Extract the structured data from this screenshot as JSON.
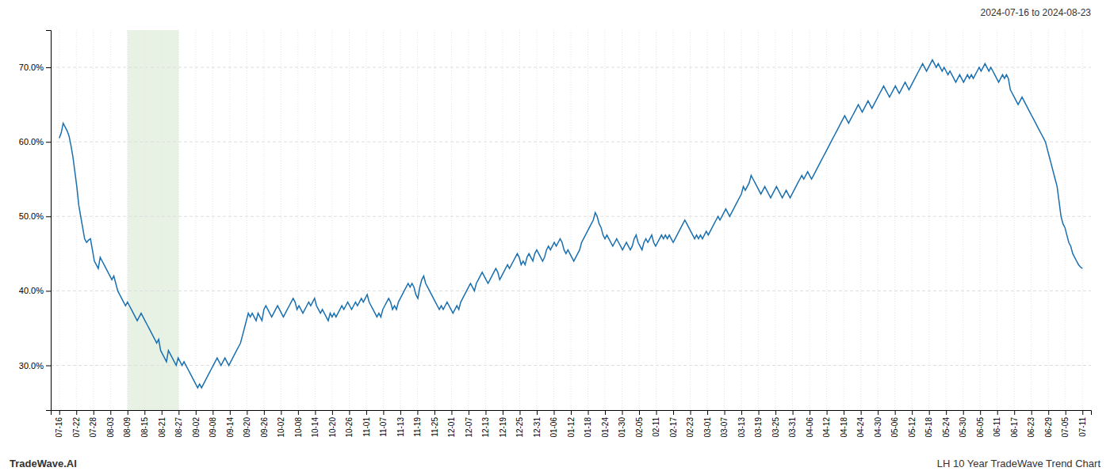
{
  "chart_data": {
    "type": "line",
    "title": "LH 10 Year TradeWave Trend Chart",
    "subtitle": "2024-07-16 to 2024-08-23",
    "annotations": [
      {
        "text": "TradeWave.AI"
      }
    ],
    "color": "#1a6faf",
    "grid": true,
    "ylim": [
      24,
      75
    ],
    "yticks": [
      {
        "value": 30.0,
        "label": "30.0%"
      },
      {
        "value": 40.0,
        "label": "40.0%"
      },
      {
        "value": 50.0,
        "label": "50.0%"
      },
      {
        "value": 60.0,
        "label": "60.0%"
      },
      {
        "value": 70.0,
        "label": "70.0%"
      }
    ],
    "xlim": [
      -4.375,
      529.375
    ],
    "xticks": [
      {
        "value": 0,
        "label": "07-16"
      },
      {
        "value": 8.75,
        "label": "07-22"
      },
      {
        "value": 17.5,
        "label": "07-28"
      },
      {
        "value": 26.25,
        "label": "08-03"
      },
      {
        "value": 35,
        "label": "08-09"
      },
      {
        "value": 43.75,
        "label": "08-15"
      },
      {
        "value": 52.5,
        "label": "08-21"
      },
      {
        "value": 61.25,
        "label": "08-27"
      },
      {
        "value": 70,
        "label": "09-02"
      },
      {
        "value": 78.75,
        "label": "09-08"
      },
      {
        "value": 87.5,
        "label": "09-14"
      },
      {
        "value": 96.25,
        "label": "09-20"
      },
      {
        "value": 105,
        "label": "09-26"
      },
      {
        "value": 113.75,
        "label": "10-02"
      },
      {
        "value": 122.5,
        "label": "10-08"
      },
      {
        "value": 131.25,
        "label": "10-14"
      },
      {
        "value": 140,
        "label": "10-20"
      },
      {
        "value": 148.75,
        "label": "10-26"
      },
      {
        "value": 157.5,
        "label": "11-01"
      },
      {
        "value": 166.25,
        "label": "11-07"
      },
      {
        "value": 175,
        "label": "11-13"
      },
      {
        "value": 183.75,
        "label": "11-19"
      },
      {
        "value": 192.5,
        "label": "11-25"
      },
      {
        "value": 201.25,
        "label": "12-01"
      },
      {
        "value": 210,
        "label": "12-07"
      },
      {
        "value": 218.75,
        "label": "12-13"
      },
      {
        "value": 227.5,
        "label": "12-19"
      },
      {
        "value": 236.25,
        "label": "12-25"
      },
      {
        "value": 245,
        "label": "12-31"
      },
      {
        "value": 253.75,
        "label": "01-06"
      },
      {
        "value": 262.5,
        "label": "01-12"
      },
      {
        "value": 271.25,
        "label": "01-18"
      },
      {
        "value": 280,
        "label": "01-24"
      },
      {
        "value": 288.75,
        "label": "01-30"
      },
      {
        "value": 297.5,
        "label": "02-05"
      },
      {
        "value": 306.25,
        "label": "02-11"
      },
      {
        "value": 315,
        "label": "02-17"
      },
      {
        "value": 323.75,
        "label": "02-23"
      },
      {
        "value": 332.5,
        "label": "03-01"
      },
      {
        "value": 341.25,
        "label": "03-07"
      },
      {
        "value": 350,
        "label": "03-13"
      },
      {
        "value": 358.75,
        "label": "03-19"
      },
      {
        "value": 367.5,
        "label": "03-25"
      },
      {
        "value": 376.25,
        "label": "03-31"
      },
      {
        "value": 385,
        "label": "04-06"
      },
      {
        "value": 393.75,
        "label": "04-12"
      },
      {
        "value": 402.5,
        "label": "04-18"
      },
      {
        "value": 411.25,
        "label": "04-24"
      },
      {
        "value": 420,
        "label": "04-30"
      },
      {
        "value": 428.75,
        "label": "05-06"
      },
      {
        "value": 437.5,
        "label": "05-12"
      },
      {
        "value": 446.25,
        "label": "05-18"
      },
      {
        "value": 455,
        "label": "05-24"
      },
      {
        "value": 463.75,
        "label": "05-30"
      },
      {
        "value": 472.5,
        "label": "06-05"
      },
      {
        "value": 481.25,
        "label": "06-11"
      },
      {
        "value": 490,
        "label": "06-17"
      },
      {
        "value": 498.75,
        "label": "06-23"
      },
      {
        "value": 507.5,
        "label": "06-29"
      },
      {
        "value": 516.25,
        "label": "07-05"
      },
      {
        "value": 525,
        "label": "07-11"
      }
    ],
    "highlight": {
      "start": 35,
      "end": 61.25,
      "color": "#d4e8d0"
    },
    "values": [
      60.5,
      61.2,
      62.5,
      62.0,
      61.5,
      60.8,
      59.5,
      58.0,
      56.0,
      54.0,
      51.5,
      50.0,
      48.5,
      47.0,
      46.5,
      46.8,
      47.0,
      45.5,
      44.0,
      43.5,
      43.0,
      44.5,
      44.0,
      43.5,
      43.0,
      42.5,
      42.0,
      41.5,
      42.0,
      41.0,
      40.0,
      39.5,
      39.0,
      38.5,
      38.0,
      38.5,
      38.0,
      37.5,
      37.0,
      36.5,
      36.0,
      36.5,
      37.0,
      36.5,
      36.0,
      35.5,
      35.0,
      34.5,
      34.0,
      33.5,
      33.0,
      33.5,
      32.0,
      31.5,
      31.0,
      30.5,
      32.0,
      31.5,
      31.0,
      30.5,
      30.0,
      31.0,
      30.5,
      30.0,
      30.5,
      30.0,
      29.5,
      29.0,
      28.5,
      28.0,
      27.5,
      27.0,
      27.5,
      27.0,
      27.5,
      28.0,
      28.5,
      29.0,
      29.5,
      30.0,
      30.5,
      31.0,
      30.5,
      30.0,
      30.5,
      31.0,
      30.5,
      30.0,
      30.5,
      31.0,
      31.5,
      32.0,
      32.5,
      33.0,
      34.0,
      35.0,
      36.0,
      37.0,
      36.5,
      37.0,
      36.5,
      36.0,
      37.0,
      36.5,
      36.0,
      37.5,
      38.0,
      37.5,
      37.0,
      36.5,
      37.0,
      37.5,
      38.0,
      37.5,
      37.0,
      36.5,
      37.0,
      37.5,
      38.0,
      38.5,
      39.0,
      38.5,
      37.5,
      38.0,
      37.5,
      37.0,
      37.5,
      38.0,
      38.5,
      38.0,
      38.5,
      39.0,
      38.0,
      37.5,
      37.0,
      37.5,
      37.0,
      36.5,
      36.0,
      37.0,
      36.5,
      37.0,
      36.5,
      37.0,
      37.5,
      38.0,
      37.5,
      38.0,
      38.5,
      38.0,
      37.5,
      38.0,
      38.5,
      38.0,
      38.5,
      39.0,
      38.5,
      39.0,
      39.5,
      38.5,
      38.0,
      37.5,
      37.0,
      36.5,
      37.0,
      36.5,
      37.5,
      38.0,
      38.5,
      39.0,
      38.5,
      37.5,
      38.0,
      37.5,
      38.5,
      39.0,
      39.5,
      40.0,
      40.5,
      41.0,
      40.5,
      41.0,
      40.5,
      39.5,
      39.0,
      40.5,
      41.5,
      42.0,
      41.0,
      40.5,
      40.0,
      39.5,
      39.0,
      38.5,
      38.0,
      37.5,
      38.0,
      37.5,
      38.0,
      38.5,
      38.0,
      37.5,
      37.0,
      37.5,
      38.0,
      37.5,
      38.5,
      39.0,
      39.5,
      40.0,
      40.5,
      41.0,
      40.5,
      40.0,
      41.0,
      41.5,
      42.0,
      42.5,
      42.0,
      41.5,
      41.0,
      41.5,
      42.0,
      42.5,
      43.0,
      42.5,
      41.5,
      42.0,
      42.5,
      43.0,
      43.5,
      43.0,
      43.5,
      44.0,
      44.5,
      45.0,
      44.5,
      43.5,
      44.0,
      43.5,
      44.5,
      45.0,
      44.5,
      44.0,
      45.0,
      45.5,
      45.0,
      44.5,
      44.0,
      44.5,
      45.5,
      46.0,
      45.5,
      46.0,
      46.5,
      46.0,
      46.5,
      47.0,
      46.5,
      45.5,
      45.0,
      45.5,
      45.0,
      44.5,
      44.0,
      44.5,
      45.0,
      45.5,
      46.5,
      47.0,
      47.5,
      48.0,
      48.5,
      49.0,
      49.5,
      50.5,
      50.0,
      49.0,
      48.5,
      47.5,
      47.0,
      47.5,
      47.0,
      46.5,
      46.0,
      46.5,
      47.0,
      46.5,
      46.0,
      45.5,
      46.0,
      46.5,
      46.0,
      45.5,
      46.0,
      47.0,
      47.5,
      46.5,
      46.0,
      45.5,
      46.5,
      47.0,
      46.5,
      47.0,
      47.5,
      46.5,
      46.0,
      46.5,
      47.0,
      47.5,
      47.0,
      47.5,
      47.0,
      47.5,
      47.0,
      46.5,
      47.0,
      47.5,
      48.0,
      48.5,
      49.0,
      49.5,
      49.0,
      48.5,
      48.0,
      47.5,
      47.0,
      47.5,
      47.0,
      47.5,
      47.0,
      47.5,
      48.0,
      47.5,
      48.0,
      48.5,
      49.0,
      49.5,
      50.0,
      49.5,
      50.0,
      50.5,
      51.0,
      50.5,
      50.0,
      50.5,
      51.0,
      51.5,
      52.0,
      52.5,
      53.0,
      54.0,
      53.5,
      54.0,
      54.5,
      55.5,
      55.0,
      54.5,
      54.0,
      53.5,
      53.0,
      53.5,
      54.0,
      53.5,
      53.0,
      52.5,
      53.0,
      53.5,
      54.0,
      53.5,
      53.0,
      52.5,
      53.0,
      53.5,
      53.0,
      52.5,
      53.0,
      53.5,
      54.0,
      54.5,
      55.0,
      55.5,
      55.0,
      55.5,
      56.0,
      55.5,
      55.0,
      55.5,
      56.0,
      56.5,
      57.0,
      57.5,
      58.0,
      58.5,
      59.0,
      59.5,
      60.0,
      60.5,
      61.0,
      61.5,
      62.0,
      62.5,
      63.0,
      63.5,
      63.0,
      62.5,
      63.0,
      63.5,
      64.0,
      64.5,
      65.0,
      64.5,
      64.0,
      64.5,
      65.0,
      65.5,
      65.0,
      64.5,
      65.0,
      65.5,
      66.0,
      66.5,
      67.0,
      67.5,
      67.0,
      66.5,
      66.0,
      66.5,
      67.0,
      67.5,
      67.0,
      66.5,
      67.0,
      67.5,
      68.0,
      67.5,
      67.0,
      67.5,
      68.0,
      68.5,
      69.0,
      69.5,
      70.0,
      70.5,
      70.0,
      69.5,
      70.0,
      70.5,
      71.0,
      70.5,
      70.0,
      70.5,
      70.0,
      69.5,
      70.0,
      69.5,
      69.0,
      69.5,
      69.0,
      68.5,
      68.0,
      68.5,
      69.0,
      68.5,
      68.0,
      68.5,
      69.0,
      68.5,
      69.0,
      68.5,
      69.0,
      69.5,
      70.0,
      69.5,
      70.0,
      70.5,
      70.0,
      69.5,
      70.0,
      69.5,
      69.0,
      68.5,
      68.0,
      68.5,
      69.0,
      68.5,
      69.0,
      68.5,
      67.0,
      66.5,
      66.0,
      65.5,
      65.0,
      65.5,
      66.0,
      65.5,
      65.0,
      64.5,
      64.0,
      63.5,
      63.0,
      62.5,
      62.0,
      61.5,
      61.0,
      60.5,
      60.0,
      59.0,
      58.0,
      57.0,
      56.0,
      55.0,
      54.0,
      52.0,
      50.0,
      49.0,
      48.5,
      47.5,
      46.5,
      46.0,
      45.0,
      44.5,
      44.0,
      43.5,
      43.2,
      43.0
    ]
  }
}
